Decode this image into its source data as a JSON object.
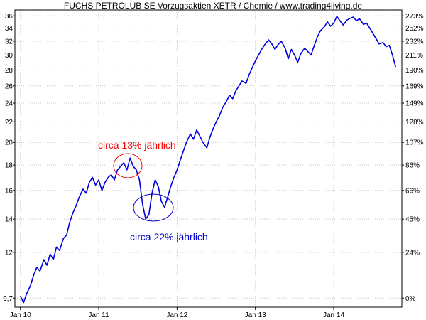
{
  "chart_data": {
    "type": "line",
    "title": "FUCHS PETROLUB SE Vorzugsaktien XETR / Chemie / www.trading4living.de",
    "xlabel": "",
    "ylabel": "",
    "x_ticks": [
      "Jan 10",
      "Jan 11",
      "Jan 12",
      "Jan 13",
      "Jan 14"
    ],
    "y_log_scale": true,
    "ylim": [
      9.3,
      37
    ],
    "y_ticks_left": [
      "9,7",
      "12",
      "14",
      "16",
      "18",
      "20",
      "22",
      "24",
      "26",
      "28",
      "30",
      "32",
      "34",
      "36"
    ],
    "y_ticks_right": [
      "0%",
      "24%",
      "45%",
      "66%",
      "86%",
      "107%",
      "128%",
      "149%",
      "169%",
      "190%",
      "211%",
      "232%",
      "252%",
      "273%"
    ],
    "grid": true,
    "series": [
      {
        "color": "#0000dd",
        "x": [
          2010.0,
          2010.04,
          2010.08,
          2010.13,
          2010.17,
          2010.21,
          2010.25,
          2010.3,
          2010.34,
          2010.38,
          2010.42,
          2010.46,
          2010.5,
          2010.55,
          2010.59,
          2010.63,
          2010.67,
          2010.71,
          2010.75,
          2010.8,
          2010.84,
          2010.88,
          2010.92,
          2010.96,
          2011.0,
          2011.04,
          2011.08,
          2011.12,
          2011.16,
          2011.2,
          2011.24,
          2011.28,
          2011.32,
          2011.36,
          2011.4,
          2011.44,
          2011.48,
          2011.52,
          2011.56,
          2011.6,
          2011.64,
          2011.68,
          2011.72,
          2011.76,
          2011.8,
          2011.84,
          2011.88,
          2011.92,
          2011.96,
          2012.0,
          2012.04,
          2012.08,
          2012.12,
          2012.17,
          2012.21,
          2012.25,
          2012.29,
          2012.33,
          2012.38,
          2012.42,
          2012.46,
          2012.5,
          2012.54,
          2012.58,
          2012.63,
          2012.67,
          2012.71,
          2012.75,
          2012.79,
          2012.83,
          2012.88,
          2012.92,
          2012.96,
          2013.0,
          2013.04,
          2013.08,
          2013.12,
          2013.17,
          2013.21,
          2013.25,
          2013.29,
          2013.33,
          2013.38,
          2013.42,
          2013.46,
          2013.5,
          2013.54,
          2013.58,
          2013.63,
          2013.67,
          2013.71,
          2013.75,
          2013.79,
          2013.83,
          2013.88,
          2013.92,
          2013.96,
          2014.0,
          2014.04,
          2014.08,
          2014.12,
          2014.17,
          2014.21,
          2014.25,
          2014.29,
          2014.33,
          2014.38,
          2014.42,
          2014.46,
          2014.5,
          2014.54,
          2014.58,
          2014.63,
          2014.67,
          2014.71,
          2014.75,
          2014.79
        ],
        "values": [
          9.8,
          9.5,
          9.9,
          10.3,
          10.8,
          11.2,
          11.0,
          11.6,
          11.3,
          11.9,
          11.6,
          12.3,
          12.1,
          12.8,
          13.0,
          13.8,
          14.4,
          14.9,
          15.5,
          16.1,
          15.8,
          16.6,
          17.0,
          16.4,
          16.8,
          16.0,
          16.6,
          17.0,
          17.2,
          16.8,
          17.6,
          17.9,
          18.2,
          17.6,
          18.6,
          17.9,
          17.6,
          16.8,
          15.0,
          14.0,
          14.3,
          15.8,
          16.8,
          16.3,
          15.2,
          14.8,
          15.5,
          16.3,
          17.0,
          17.6,
          18.4,
          19.2,
          20.0,
          20.8,
          20.3,
          21.2,
          20.6,
          20.0,
          19.5,
          20.5,
          21.3,
          22.0,
          22.6,
          23.5,
          24.2,
          24.9,
          24.5,
          25.4,
          26.0,
          26.6,
          26.3,
          27.4,
          28.3,
          29.2,
          30.0,
          30.8,
          31.5,
          32.2,
          31.6,
          30.8,
          31.5,
          32.0,
          31.0,
          29.5,
          30.8,
          30.0,
          29.0,
          30.2,
          31.0,
          30.5,
          30.0,
          31.3,
          32.6,
          33.6,
          34.2,
          35.0,
          34.3,
          34.8,
          35.9,
          35.2,
          34.5,
          35.3,
          35.6,
          35.8,
          35.2,
          35.5,
          34.6,
          34.8,
          34.0,
          33.2,
          32.4,
          31.6,
          31.8,
          31.2,
          31.4,
          30.0,
          28.4
        ]
      }
    ],
    "annotations": [
      {
        "text": "circa 13% jährlich",
        "color": "#ff0000"
      },
      {
        "text": "circa 22% jährlich",
        "color": "#0000cc"
      }
    ]
  }
}
